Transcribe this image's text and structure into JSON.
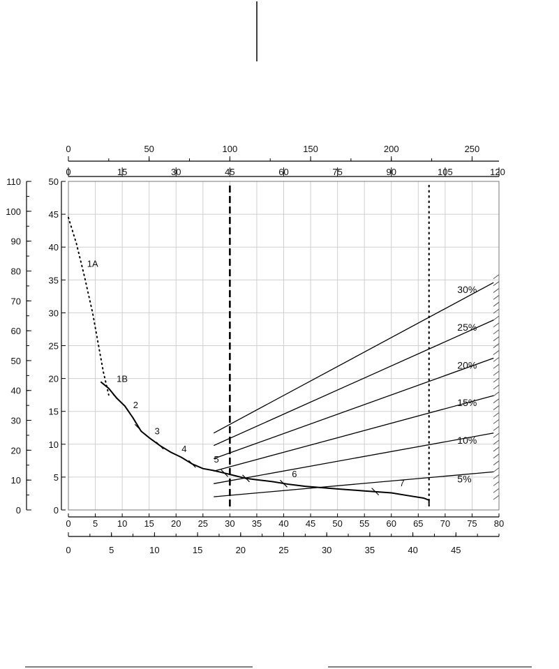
{
  "chart_data": {
    "type": "line",
    "title": "",
    "xlabel": "",
    "ylabel": "",
    "grid": true,
    "xlim": [
      0,
      80
    ],
    "ylim": [
      0,
      50
    ],
    "axes": {
      "bottom_primary": {
        "ticks": [
          0,
          5,
          10,
          15,
          20,
          25,
          30,
          35,
          40,
          45,
          50,
          55,
          60,
          65,
          70,
          75,
          80
        ]
      },
      "bottom_secondary": {
        "ticks": [
          0,
          5,
          10,
          15,
          20,
          25,
          30,
          35,
          40,
          45
        ],
        "scale_to_primary": 1.6
      },
      "top_primary": {
        "ticks": [
          0,
          50,
          100,
          150,
          200,
          250
        ],
        "scale_to_primary": 0.3
      },
      "top_secondary": {
        "ticks": [
          0,
          15,
          30,
          45,
          60,
          75,
          90,
          105,
          120
        ],
        "scale_to_primary": 0.6667
      },
      "left_primary": {
        "ticks": [
          0,
          5,
          10,
          15,
          20,
          25,
          30,
          35,
          40,
          45,
          50
        ]
      },
      "left_secondary": {
        "ticks": [
          0,
          10,
          20,
          30,
          40,
          50,
          60,
          70,
          80,
          90,
          100,
          110
        ],
        "scale_to_primary": 0.4545
      }
    },
    "reference_lines": [
      {
        "style": "dashed",
        "x": 30
      },
      {
        "style": "dotted",
        "x": 67
      }
    ],
    "main_curve": {
      "dotted_part": [
        [
          0,
          44.5
        ],
        [
          1.5,
          40.5
        ],
        [
          3,
          35.5
        ],
        [
          4.5,
          30
        ],
        [
          5.5,
          25.5
        ],
        [
          6.5,
          21
        ],
        [
          7.5,
          17.5
        ]
      ],
      "solid_part": [
        [
          6,
          19.5
        ],
        [
          7.5,
          18.5
        ],
        [
          9,
          17
        ],
        [
          10.5,
          15.8
        ],
        [
          12,
          14
        ],
        [
          13.5,
          12
        ],
        [
          15,
          11
        ],
        [
          17,
          9.8
        ],
        [
          19,
          8.8
        ],
        [
          21,
          8
        ],
        [
          23,
          7
        ],
        [
          25,
          6.3
        ],
        [
          27,
          6
        ],
        [
          29,
          5.6
        ],
        [
          31,
          5.2
        ],
        [
          33,
          4.8
        ],
        [
          35,
          4.6
        ],
        [
          38,
          4.3
        ],
        [
          41,
          3.9
        ],
        [
          44,
          3.6
        ],
        [
          47,
          3.4
        ],
        [
          50,
          3.2
        ],
        [
          55,
          2.9
        ],
        [
          60,
          2.6
        ],
        [
          63,
          2.2
        ],
        [
          66,
          1.8
        ],
        [
          67,
          1.5
        ],
        [
          67,
          0.9
        ]
      ]
    },
    "segment_labels": [
      {
        "text": "1A",
        "x": 4.5,
        "y": 37
      },
      {
        "text": "1B",
        "x": 10,
        "y": 19.5
      },
      {
        "text": "2",
        "x": 12.5,
        "y": 15.5
      },
      {
        "text": "3",
        "x": 16.5,
        "y": 11.5
      },
      {
        "text": "4",
        "x": 21.5,
        "y": 8.8
      },
      {
        "text": "5",
        "x": 27.5,
        "y": 7.2
      },
      {
        "text": "6",
        "x": 42,
        "y": 5
      },
      {
        "text": "7",
        "x": 62,
        "y": 3.6
      }
    ],
    "series": [
      {
        "name": "5%",
        "values": [
          [
            27,
            2
          ],
          [
            79,
            5.8
          ]
        ]
      },
      {
        "name": "10%",
        "values": [
          [
            27,
            4
          ],
          [
            79,
            11.7
          ]
        ]
      },
      {
        "name": "15%",
        "values": [
          [
            27,
            5.9
          ],
          [
            79,
            17.4
          ]
        ]
      },
      {
        "name": "20%",
        "values": [
          [
            27,
            7.8
          ],
          [
            79,
            23.1
          ]
        ]
      },
      {
        "name": "25%",
        "values": [
          [
            27,
            9.8
          ],
          [
            79,
            28.9
          ]
        ]
      },
      {
        "name": "30%",
        "values": [
          [
            27,
            11.7
          ],
          [
            79,
            34.6
          ]
        ]
      }
    ]
  }
}
